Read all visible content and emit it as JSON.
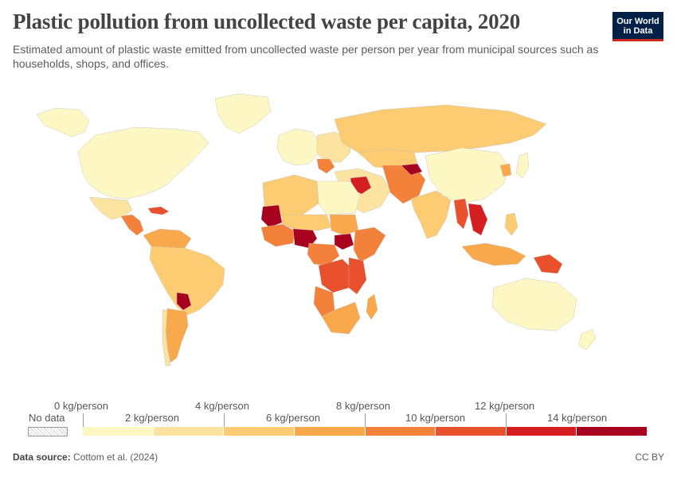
{
  "header": {
    "title": "Plastic pollution from uncollected waste per capita, 2020",
    "subtitle": "Estimated amount of plastic waste emitted from uncollected waste per person per year from municipal sources such as households, shops, and offices."
  },
  "logo": {
    "line1": "Our World",
    "line2": "in Data"
  },
  "legend": {
    "no_data_label": "No data",
    "top_labels": [
      "0 kg/person",
      "4 kg/person",
      "8 kg/person",
      "12 kg/person"
    ],
    "bottom_labels": [
      "2 kg/person",
      "6 kg/person",
      "10 kg/person",
      "14 kg/person"
    ],
    "colors": [
      "#fdf7c3",
      "#fde3a0",
      "#fdcb71",
      "#f9a94b",
      "#f4813a",
      "#e9502c",
      "#d51e20",
      "#a8001f"
    ],
    "no_data_color": "#e6e6e6"
  },
  "footer": {
    "source_label": "Data source:",
    "source_value": "Cottom et al. (2024)",
    "license": "CC BY"
  },
  "map": {
    "regions": [
      {
        "name": "north-america",
        "color": "#fdf7c3"
      },
      {
        "name": "greenland",
        "color": "#fdf7c3"
      },
      {
        "name": "alaska",
        "color": "#fdf7c3"
      },
      {
        "name": "mexico",
        "color": "#fde3a0"
      },
      {
        "name": "central-america",
        "color": "#f4813a"
      },
      {
        "name": "caribbean",
        "color": "#e9502c"
      },
      {
        "name": "south-america",
        "color": "#fdcb71"
      },
      {
        "name": "colombia-venezuela",
        "color": "#f9a94b"
      },
      {
        "name": "argentina",
        "color": "#f9a94b"
      },
      {
        "name": "paraguay",
        "color": "#a8001f"
      },
      {
        "name": "chile",
        "color": "#fde3a0"
      },
      {
        "name": "western-europe",
        "color": "#fdf7c3"
      },
      {
        "name": "eastern-europe",
        "color": "#fde3a0"
      },
      {
        "name": "balkans",
        "color": "#f4813a"
      },
      {
        "name": "russia",
        "color": "#fdcb71"
      },
      {
        "name": "kazakhstan",
        "color": "#fdcb71"
      },
      {
        "name": "middle-east",
        "color": "#fde3a0"
      },
      {
        "name": "iraq-syria",
        "color": "#d51e20"
      },
      {
        "name": "central-asia",
        "color": "#f4813a"
      },
      {
        "name": "tajikistan",
        "color": "#a8001f"
      },
      {
        "name": "india",
        "color": "#fdcb71"
      },
      {
        "name": "china",
        "color": "#fdf7c3"
      },
      {
        "name": "korea",
        "color": "#f9a94b"
      },
      {
        "name": "japan",
        "color": "#fdf7c3"
      },
      {
        "name": "myanmar",
        "color": "#e9502c"
      },
      {
        "name": "indochina",
        "color": "#d51e20"
      },
      {
        "name": "philippines",
        "color": "#fdcb71"
      },
      {
        "name": "indonesia",
        "color": "#f9a94b"
      },
      {
        "name": "papua",
        "color": "#e9502c"
      },
      {
        "name": "australia",
        "color": "#fdf7c3"
      },
      {
        "name": "new-zealand",
        "color": "#fdf7c3"
      },
      {
        "name": "north-africa",
        "color": "#fdcb71"
      },
      {
        "name": "libya-egypt",
        "color": "#fdf7c3"
      },
      {
        "name": "mauritania",
        "color": "#a8001f"
      },
      {
        "name": "west-africa",
        "color": "#f4813a"
      },
      {
        "name": "nigeria",
        "color": "#a8001f"
      },
      {
        "name": "sahel",
        "color": "#fdcb71"
      },
      {
        "name": "sudan",
        "color": "#f9a94b"
      },
      {
        "name": "south-sudan",
        "color": "#a8001f"
      },
      {
        "name": "horn-of-africa",
        "color": "#f4813a"
      },
      {
        "name": "central-africa",
        "color": "#f4813a"
      },
      {
        "name": "drc",
        "color": "#e9502c"
      },
      {
        "name": "angola",
        "color": "#f4813a"
      },
      {
        "name": "east-africa",
        "color": "#e9502c"
      },
      {
        "name": "southern-africa",
        "color": "#f9a94b"
      },
      {
        "name": "madagascar",
        "color": "#f9a94b"
      }
    ]
  }
}
